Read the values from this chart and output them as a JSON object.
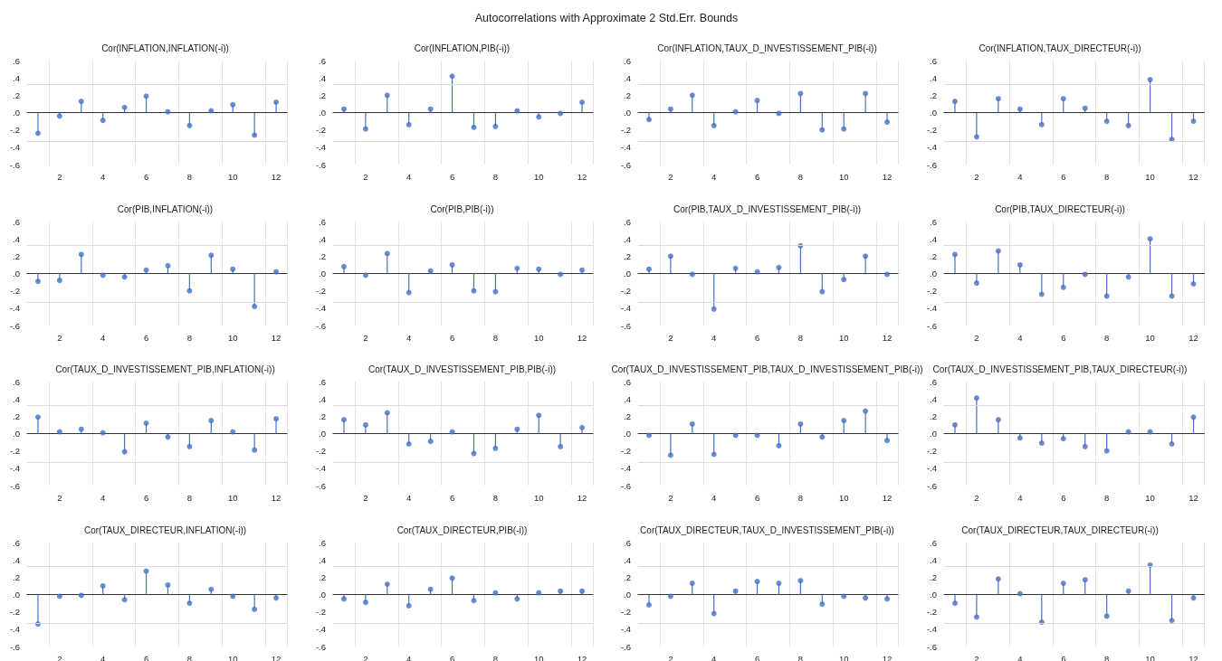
{
  "chart_data": [
    {
      "type": "other",
      "title": "Autocorrelations with Approximate 2 Std.Err. Bounds"
    },
    {
      "type": "lollipop",
      "title": "Cor(INFLATION,INFLATION(-i))",
      "categories": [
        null,
        "2",
        null,
        "4",
        null,
        "6",
        null,
        "8",
        null,
        "10",
        null,
        "12"
      ],
      "values": [
        -0.24,
        -0.04,
        0.13,
        -0.09,
        0.06,
        0.19,
        0.01,
        -0.15,
        0.02,
        0.09,
        -0.26,
        0.12
      ],
      "color": "#4472c4",
      "marker": "circle",
      "grid": "x",
      "ylim": [
        -0.6,
        0.6
      ],
      "yticks": [
        {
          "value": -0.6,
          "label": "-.6"
        },
        {
          "value": -0.4,
          "label": "-.4"
        },
        {
          "value": -0.2,
          "label": "-.2"
        },
        {
          "value": 0,
          "label": ".0"
        },
        {
          "value": 0.2,
          "label": ".2"
        },
        {
          "value": 0.4,
          "label": ".4"
        },
        {
          "value": 0.6,
          "label": ".6"
        }
      ],
      "ref_lines": [
        {
          "axis": "y",
          "value": 0.33,
          "color": "#d9d9d9"
        },
        {
          "axis": "y",
          "value": -0.33,
          "color": "#d9d9d9"
        }
      ]
    },
    {
      "type": "lollipop",
      "title": "Cor(INFLATION,PIB(-i))",
      "categories": [
        null,
        "2",
        null,
        "4",
        null,
        "6",
        null,
        "8",
        null,
        "10",
        null,
        "12"
      ],
      "values": [
        0.04,
        -0.19,
        0.2,
        -0.14,
        0.04,
        0.42,
        -0.17,
        -0.16,
        0.02,
        -0.05,
        -0.01,
        0.12
      ],
      "color": "#4472c4",
      "marker": "circle",
      "grid": "x",
      "ylim": [
        -0.6,
        0.6
      ],
      "yticks": [
        {
          "value": -0.6,
          "label": "-.6"
        },
        {
          "value": -0.4,
          "label": "-.4"
        },
        {
          "value": -0.2,
          "label": "-.2"
        },
        {
          "value": 0,
          "label": ".0"
        },
        {
          "value": 0.2,
          "label": ".2"
        },
        {
          "value": 0.4,
          "label": ".4"
        },
        {
          "value": 0.6,
          "label": ".6"
        }
      ],
      "ref_lines": [
        {
          "axis": "y",
          "value": 0.33,
          "color": "#d9d9d9"
        },
        {
          "axis": "y",
          "value": -0.33,
          "color": "#d9d9d9"
        }
      ]
    },
    {
      "type": "lollipop",
      "title": "Cor(INFLATION,TAUX_D_INVESTISSEMENT_PIB(-i))",
      "categories": [
        null,
        "2",
        null,
        "4",
        null,
        "6",
        null,
        "8",
        null,
        "10",
        null,
        "12"
      ],
      "values": [
        -0.08,
        0.04,
        0.2,
        -0.15,
        0.01,
        0.14,
        -0.01,
        0.22,
        -0.2,
        -0.19,
        0.22,
        -0.11
      ],
      "color": "#4472c4",
      "marker": "circle",
      "grid": "x",
      "ylim": [
        -0.6,
        0.6
      ],
      "yticks": [
        {
          "value": -0.6,
          "label": "-.6"
        },
        {
          "value": -0.4,
          "label": "-.4"
        },
        {
          "value": -0.2,
          "label": "-.2"
        },
        {
          "value": 0,
          "label": ".0"
        },
        {
          "value": 0.2,
          "label": ".2"
        },
        {
          "value": 0.4,
          "label": ".4"
        },
        {
          "value": 0.6,
          "label": ".6"
        }
      ],
      "ref_lines": [
        {
          "axis": "y",
          "value": 0.33,
          "color": "#d9d9d9"
        },
        {
          "axis": "y",
          "value": -0.33,
          "color": "#d9d9d9"
        }
      ]
    },
    {
      "type": "lollipop",
      "title": "Cor(INFLATION,TAUX_DIRECTEUR(-i))",
      "categories": [
        null,
        "2",
        null,
        "4",
        null,
        "6",
        null,
        "8",
        null,
        "10",
        null,
        "12"
      ],
      "values": [
        0.13,
        -0.28,
        0.16,
        0.04,
        -0.14,
        0.16,
        0.05,
        -0.1,
        -0.15,
        0.38,
        -0.31,
        -0.1
      ],
      "color": "#4472c4",
      "marker": "circle",
      "grid": "x",
      "ylim": [
        -0.6,
        0.6
      ],
      "yticks": [
        {
          "value": -0.6,
          "label": "-.6"
        },
        {
          "value": -0.4,
          "label": "-.4"
        },
        {
          "value": -0.2,
          "label": "-.2"
        },
        {
          "value": 0,
          "label": ".0"
        },
        {
          "value": 0.2,
          "label": ".2"
        },
        {
          "value": 0.4,
          "label": ".4"
        },
        {
          "value": 0.6,
          "label": ".6"
        }
      ],
      "ref_lines": [
        {
          "axis": "y",
          "value": 0.33,
          "color": "#d9d9d9"
        },
        {
          "axis": "y",
          "value": -0.33,
          "color": "#d9d9d9"
        }
      ]
    },
    {
      "type": "lollipop",
      "title": "Cor(PIB,INFLATION(-i))",
      "categories": [
        null,
        "2",
        null,
        "4",
        null,
        "6",
        null,
        "8",
        null,
        "10",
        null,
        "12"
      ],
      "values": [
        -0.09,
        -0.08,
        0.22,
        -0.02,
        -0.04,
        0.04,
        0.09,
        -0.2,
        0.21,
        0.05,
        -0.38,
        0.02
      ],
      "color": "#4472c4",
      "marker": "circle",
      "grid": "x",
      "ylim": [
        -0.6,
        0.6
      ],
      "yticks": [
        {
          "value": -0.6,
          "label": "-.6"
        },
        {
          "value": -0.4,
          "label": "-.4"
        },
        {
          "value": -0.2,
          "label": "-.2"
        },
        {
          "value": 0,
          "label": ".0"
        },
        {
          "value": 0.2,
          "label": ".2"
        },
        {
          "value": 0.4,
          "label": ".4"
        },
        {
          "value": 0.6,
          "label": ".6"
        }
      ],
      "ref_lines": [
        {
          "axis": "y",
          "value": 0.33,
          "color": "#d9d9d9"
        },
        {
          "axis": "y",
          "value": -0.33,
          "color": "#d9d9d9"
        }
      ]
    },
    {
      "type": "lollipop",
      "title": "Cor(PIB,PIB(-i))",
      "categories": [
        null,
        "2",
        null,
        "4",
        null,
        "6",
        null,
        "8",
        null,
        "10",
        null,
        "12"
      ],
      "values": [
        0.08,
        -0.02,
        0.23,
        -0.22,
        0.03,
        0.1,
        -0.2,
        -0.21,
        0.06,
        0.05,
        -0.01,
        0.04
      ],
      "color": "#4472c4",
      "marker": "circle",
      "grid": "x",
      "ylim": [
        -0.6,
        0.6
      ],
      "yticks": [
        {
          "value": -0.6,
          "label": "-.6"
        },
        {
          "value": -0.4,
          "label": "-.4"
        },
        {
          "value": -0.2,
          "label": "-.2"
        },
        {
          "value": 0,
          "label": ".0"
        },
        {
          "value": 0.2,
          "label": ".2"
        },
        {
          "value": 0.4,
          "label": ".4"
        },
        {
          "value": 0.6,
          "label": ".6"
        }
      ],
      "ref_lines": [
        {
          "axis": "y",
          "value": 0.33,
          "color": "#d9d9d9"
        },
        {
          "axis": "y",
          "value": -0.33,
          "color": "#d9d9d9"
        }
      ]
    },
    {
      "type": "lollipop",
      "title": "Cor(PIB,TAUX_D_INVESTISSEMENT_PIB(-i))",
      "categories": [
        null,
        "2",
        null,
        "4",
        null,
        "6",
        null,
        "8",
        null,
        "10",
        null,
        "12"
      ],
      "values": [
        0.05,
        0.2,
        -0.01,
        -0.41,
        0.06,
        0.02,
        0.07,
        0.32,
        -0.21,
        -0.07,
        0.2,
        -0.01
      ],
      "color": "#4472c4",
      "marker": "circle",
      "grid": "x",
      "ylim": [
        -0.6,
        0.6
      ],
      "yticks": [
        {
          "value": -0.6,
          "label": "-.6"
        },
        {
          "value": -0.4,
          "label": "-.4"
        },
        {
          "value": -0.2,
          "label": "-.2"
        },
        {
          "value": 0,
          "label": ".0"
        },
        {
          "value": 0.2,
          "label": ".2"
        },
        {
          "value": 0.4,
          "label": ".4"
        },
        {
          "value": 0.6,
          "label": ".6"
        }
      ],
      "ref_lines": [
        {
          "axis": "y",
          "value": 0.33,
          "color": "#d9d9d9"
        },
        {
          "axis": "y",
          "value": -0.33,
          "color": "#d9d9d9"
        }
      ]
    },
    {
      "type": "lollipop",
      "title": "Cor(PIB,TAUX_DIRECTEUR(-i))",
      "categories": [
        null,
        "2",
        null,
        "4",
        null,
        "6",
        null,
        "8",
        null,
        "10",
        null,
        "12"
      ],
      "values": [
        0.22,
        -0.11,
        0.26,
        0.1,
        -0.24,
        -0.16,
        -0.01,
        -0.26,
        -0.04,
        0.4,
        -0.26,
        -0.12
      ],
      "color": "#4472c4",
      "marker": "circle",
      "grid": "x",
      "ylim": [
        -0.6,
        0.6
      ],
      "yticks": [
        {
          "value": -0.6,
          "label": "-.6"
        },
        {
          "value": -0.4,
          "label": "-.4"
        },
        {
          "value": -0.2,
          "label": "-.2"
        },
        {
          "value": 0,
          "label": ".0"
        },
        {
          "value": 0.2,
          "label": ".2"
        },
        {
          "value": 0.4,
          "label": ".4"
        },
        {
          "value": 0.6,
          "label": ".6"
        }
      ],
      "ref_lines": [
        {
          "axis": "y",
          "value": 0.33,
          "color": "#d9d9d9"
        },
        {
          "axis": "y",
          "value": -0.33,
          "color": "#d9d9d9"
        }
      ]
    },
    {
      "type": "lollipop",
      "title": "Cor(TAUX_D_INVESTISSEMENT_PIB,INFLATION(-i))",
      "categories": [
        null,
        "2",
        null,
        "4",
        null,
        "6",
        null,
        "8",
        null,
        "10",
        null,
        "12"
      ],
      "values": [
        0.19,
        0.02,
        0.05,
        0.01,
        -0.21,
        0.12,
        -0.04,
        -0.15,
        0.15,
        0.02,
        -0.19,
        0.17
      ],
      "color": "#4472c4",
      "marker": "circle",
      "grid": "x",
      "ylim": [
        -0.6,
        0.6
      ],
      "yticks": [
        {
          "value": -0.6,
          "label": "-.6"
        },
        {
          "value": -0.4,
          "label": "-.4"
        },
        {
          "value": -0.2,
          "label": "-.2"
        },
        {
          "value": 0,
          "label": ".0"
        },
        {
          "value": 0.2,
          "label": ".2"
        },
        {
          "value": 0.4,
          "label": ".4"
        },
        {
          "value": 0.6,
          "label": ".6"
        }
      ],
      "ref_lines": [
        {
          "axis": "y",
          "value": 0.33,
          "color": "#d9d9d9"
        },
        {
          "axis": "y",
          "value": -0.33,
          "color": "#d9d9d9"
        }
      ]
    },
    {
      "type": "lollipop",
      "title": "Cor(TAUX_D_INVESTISSEMENT_PIB,PIB(-i))",
      "categories": [
        null,
        "2",
        null,
        "4",
        null,
        "6",
        null,
        "8",
        null,
        "10",
        null,
        "12"
      ],
      "values": [
        0.16,
        0.1,
        0.24,
        -0.12,
        -0.09,
        0.02,
        -0.23,
        -0.17,
        0.05,
        0.21,
        -0.15,
        0.07
      ],
      "color": "#4472c4",
      "marker": "circle",
      "grid": "x",
      "ylim": [
        -0.6,
        0.6
      ],
      "yticks": [
        {
          "value": -0.6,
          "label": "-.6"
        },
        {
          "value": -0.4,
          "label": "-.4"
        },
        {
          "value": -0.2,
          "label": "-.2"
        },
        {
          "value": 0,
          "label": ".0"
        },
        {
          "value": 0.2,
          "label": ".2"
        },
        {
          "value": 0.4,
          "label": ".4"
        },
        {
          "value": 0.6,
          "label": ".6"
        }
      ],
      "ref_lines": [
        {
          "axis": "y",
          "value": 0.33,
          "color": "#d9d9d9"
        },
        {
          "axis": "y",
          "value": -0.33,
          "color": "#d9d9d9"
        }
      ]
    },
    {
      "type": "lollipop",
      "title": "Cor(TAUX_D_INVESTISSEMENT_PIB,TAUX_D_INVESTISSEMENT_PIB(-i))",
      "categories": [
        null,
        "2",
        null,
        "4",
        null,
        "6",
        null,
        "8",
        null,
        "10",
        null,
        "12"
      ],
      "values": [
        -0.02,
        -0.25,
        0.11,
        -0.24,
        -0.02,
        -0.02,
        -0.14,
        0.11,
        -0.04,
        0.15,
        0.26,
        -0.08
      ],
      "color": "#4472c4",
      "marker": "circle",
      "grid": "x",
      "ylim": [
        -0.6,
        0.6
      ],
      "yticks": [
        {
          "value": -0.6,
          "label": "-.6"
        },
        {
          "value": -0.4,
          "label": "-.4"
        },
        {
          "value": -0.2,
          "label": "-.2"
        },
        {
          "value": 0,
          "label": ".0"
        },
        {
          "value": 0.2,
          "label": ".2"
        },
        {
          "value": 0.4,
          "label": ".4"
        },
        {
          "value": 0.6,
          "label": ".6"
        }
      ],
      "ref_lines": [
        {
          "axis": "y",
          "value": 0.33,
          "color": "#d9d9d9"
        },
        {
          "axis": "y",
          "value": -0.33,
          "color": "#d9d9d9"
        }
      ]
    },
    {
      "type": "lollipop",
      "title": "Cor(TAUX_D_INVESTISSEMENT_PIB,TAUX_DIRECTEUR(-i))",
      "categories": [
        null,
        "2",
        null,
        "4",
        null,
        "6",
        null,
        "8",
        null,
        "10",
        null,
        "12"
      ],
      "values": [
        0.1,
        0.41,
        0.16,
        -0.05,
        -0.11,
        -0.06,
        -0.15,
        -0.2,
        0.02,
        0.02,
        -0.12,
        0.19
      ],
      "color": "#4472c4",
      "marker": "circle",
      "grid": "x",
      "ylim": [
        -0.6,
        0.6
      ],
      "yticks": [
        {
          "value": -0.6,
          "label": "-.6"
        },
        {
          "value": -0.4,
          "label": "-.4"
        },
        {
          "value": -0.2,
          "label": "-.2"
        },
        {
          "value": 0,
          "label": ".0"
        },
        {
          "value": 0.2,
          "label": ".2"
        },
        {
          "value": 0.4,
          "label": ".4"
        },
        {
          "value": 0.6,
          "label": ".6"
        }
      ],
      "ref_lines": [
        {
          "axis": "y",
          "value": 0.33,
          "color": "#d9d9d9"
        },
        {
          "axis": "y",
          "value": -0.33,
          "color": "#d9d9d9"
        }
      ]
    },
    {
      "type": "lollipop",
      "title": "Cor(TAUX_DIRECTEUR,INFLATION(-i))",
      "categories": [
        null,
        "2",
        null,
        "4",
        null,
        "6",
        null,
        "8",
        null,
        "10",
        null,
        "12"
      ],
      "values": [
        -0.34,
        -0.02,
        -0.01,
        0.1,
        -0.06,
        0.27,
        0.11,
        -0.1,
        0.06,
        -0.02,
        -0.17,
        -0.04
      ],
      "color": "#4472c4",
      "marker": "circle",
      "grid": "x",
      "ylim": [
        -0.6,
        0.6
      ],
      "yticks": [
        {
          "value": -0.6,
          "label": "-.6"
        },
        {
          "value": -0.4,
          "label": "-.4"
        },
        {
          "value": -0.2,
          "label": "-.2"
        },
        {
          "value": 0,
          "label": ".0"
        },
        {
          "value": 0.2,
          "label": ".2"
        },
        {
          "value": 0.4,
          "label": ".4"
        },
        {
          "value": 0.6,
          "label": ".6"
        }
      ],
      "ref_lines": [
        {
          "axis": "y",
          "value": 0.33,
          "color": "#d9d9d9"
        },
        {
          "axis": "y",
          "value": -0.33,
          "color": "#d9d9d9"
        }
      ]
    },
    {
      "type": "lollipop",
      "title": "Cor(TAUX_DIRECTEUR,PIB(-i))",
      "categories": [
        null,
        "2",
        null,
        "4",
        null,
        "6",
        null,
        "8",
        null,
        "10",
        null,
        "12"
      ],
      "values": [
        -0.05,
        -0.09,
        0.12,
        -0.13,
        0.06,
        0.19,
        -0.07,
        0.02,
        -0.05,
        0.02,
        0.04,
        0.04
      ],
      "color": "#4472c4",
      "marker": "circle",
      "grid": "x",
      "ylim": [
        -0.6,
        0.6
      ],
      "yticks": [
        {
          "value": -0.6,
          "label": "-.6"
        },
        {
          "value": -0.4,
          "label": "-.4"
        },
        {
          "value": -0.2,
          "label": "-.2"
        },
        {
          "value": 0,
          "label": ".0"
        },
        {
          "value": 0.2,
          "label": ".2"
        },
        {
          "value": 0.4,
          "label": ".4"
        },
        {
          "value": 0.6,
          "label": ".6"
        }
      ],
      "ref_lines": [
        {
          "axis": "y",
          "value": 0.33,
          "color": "#d9d9d9"
        },
        {
          "axis": "y",
          "value": -0.33,
          "color": "#d9d9d9"
        }
      ]
    },
    {
      "type": "lollipop",
      "title": "Cor(TAUX_DIRECTEUR,TAUX_D_INVESTISSEMENT_PIB(-i))",
      "categories": [
        null,
        "2",
        null,
        "4",
        null,
        "6",
        null,
        "8",
        null,
        "10",
        null,
        "12"
      ],
      "values": [
        -0.12,
        -0.02,
        0.13,
        -0.22,
        0.04,
        0.15,
        0.13,
        0.16,
        -0.11,
        -0.02,
        -0.04,
        -0.05
      ],
      "color": "#4472c4",
      "marker": "circle",
      "grid": "x",
      "ylim": [
        -0.6,
        0.6
      ],
      "yticks": [
        {
          "value": -0.6,
          "label": "-.6"
        },
        {
          "value": -0.4,
          "label": "-.4"
        },
        {
          "value": -0.2,
          "label": "-.2"
        },
        {
          "value": 0,
          "label": ".0"
        },
        {
          "value": 0.2,
          "label": ".2"
        },
        {
          "value": 0.4,
          "label": ".4"
        },
        {
          "value": 0.6,
          "label": ".6"
        }
      ],
      "ref_lines": [
        {
          "axis": "y",
          "value": 0.33,
          "color": "#d9d9d9"
        },
        {
          "axis": "y",
          "value": -0.33,
          "color": "#d9d9d9"
        }
      ]
    },
    {
      "type": "lollipop",
      "title": "Cor(TAUX_DIRECTEUR,TAUX_DIRECTEUR(-i))",
      "categories": [
        null,
        "2",
        null,
        "4",
        null,
        "6",
        null,
        "8",
        null,
        "10",
        null,
        "12"
      ],
      "values": [
        -0.1,
        -0.26,
        0.18,
        0.01,
        -0.32,
        0.13,
        0.17,
        -0.25,
        0.04,
        0.34,
        -0.3,
        -0.04
      ],
      "color": "#4472c4",
      "marker": "circle",
      "grid": "x",
      "ylim": [
        -0.6,
        0.6
      ],
      "yticks": [
        {
          "value": -0.6,
          "label": "-.6"
        },
        {
          "value": -0.4,
          "label": "-.4"
        },
        {
          "value": -0.2,
          "label": "-.2"
        },
        {
          "value": 0,
          "label": ".0"
        },
        {
          "value": 0.2,
          "label": ".2"
        },
        {
          "value": 0.4,
          "label": ".4"
        },
        {
          "value": 0.6,
          "label": ".6"
        }
      ],
      "ref_lines": [
        {
          "axis": "y",
          "value": 0.33,
          "color": "#d9d9d9"
        },
        {
          "axis": "y",
          "value": -0.33,
          "color": "#d9d9d9"
        }
      ]
    }
  ]
}
